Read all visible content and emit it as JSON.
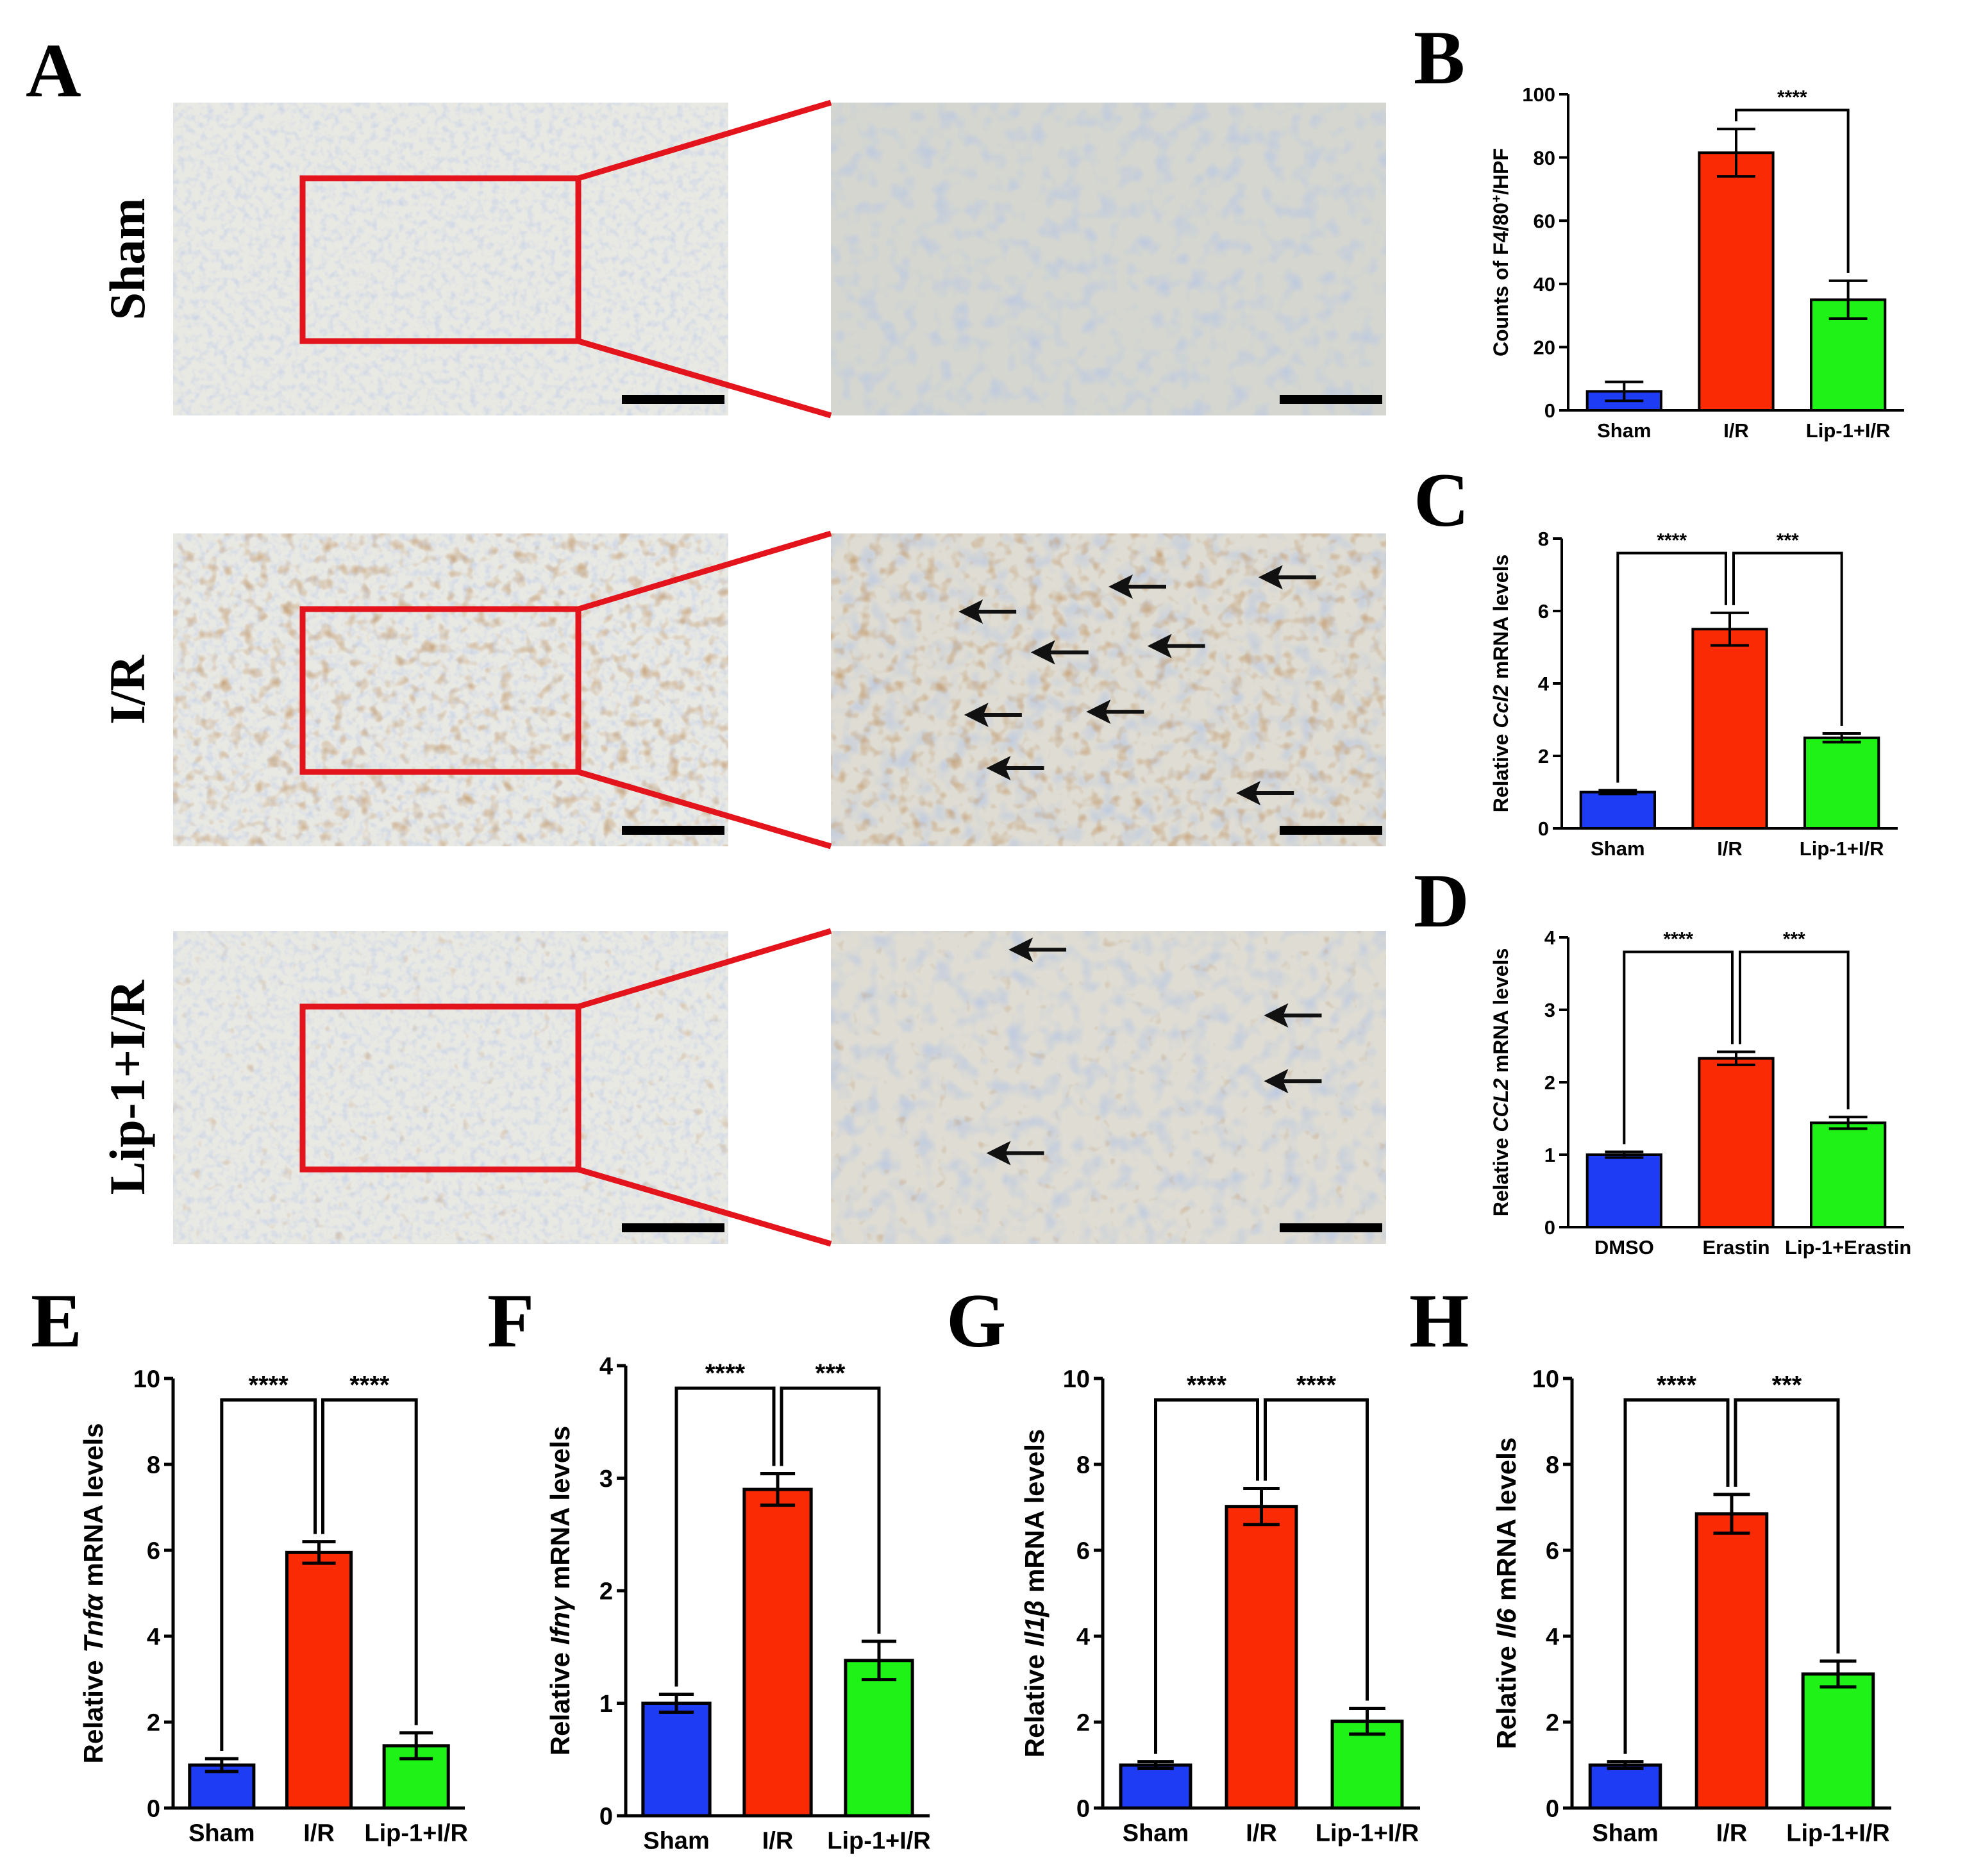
{
  "panel_a": {
    "letter": "A",
    "rows": [
      {
        "label": "Sham",
        "stain": "none",
        "arrows": []
      },
      {
        "label": "I/R",
        "stain": "heavy",
        "arrows": [
          [
            0.23,
            0.25
          ],
          [
            0.36,
            0.38
          ],
          [
            0.5,
            0.17
          ],
          [
            0.57,
            0.36
          ],
          [
            0.24,
            0.58
          ],
          [
            0.46,
            0.57
          ],
          [
            0.28,
            0.75
          ],
          [
            0.73,
            0.83
          ],
          [
            0.77,
            0.14
          ]
        ]
      },
      {
        "label": "Lip-1+I/R",
        "stain": "light",
        "arrows": [
          [
            0.32,
            0.06
          ],
          [
            0.78,
            0.27
          ],
          [
            0.78,
            0.48
          ],
          [
            0.28,
            0.71
          ]
        ]
      }
    ],
    "colors": {
      "box": "#e3141b",
      "arrow": "#111111",
      "tissue": "#e9e9e4",
      "nuclei": "#8c9cc8",
      "stain": "#8b5a2b"
    }
  },
  "chart_data": [
    {
      "panel": "B",
      "type": "bar",
      "categories": [
        "Sham",
        "I/R",
        "Lip-1+I/R"
      ],
      "values": [
        6,
        81.5,
        35
      ],
      "errors": [
        3,
        7.5,
        6
      ],
      "ylabel_parts": [
        {
          "t": "Counts of F4/80"
        },
        {
          "t": "+",
          "sup": true
        },
        {
          "t": "/HPF"
        }
      ],
      "ylim": [
        0,
        100
      ],
      "ticks": [
        0,
        20,
        40,
        60,
        80,
        100
      ],
      "significance": [
        {
          "from": 1,
          "to": 2,
          "label": "****"
        }
      ]
    },
    {
      "panel": "C",
      "type": "bar",
      "categories": [
        "Sham",
        "I/R",
        "Lip-1+I/R"
      ],
      "values": [
        1,
        5.5,
        2.5
      ],
      "errors": [
        0.05,
        0.45,
        0.12
      ],
      "ylabel_parts": [
        {
          "t": "Relative "
        },
        {
          "t": "Ccl2",
          "italic": true
        },
        {
          "t": " mRNA levels"
        }
      ],
      "ylim": [
        0,
        8
      ],
      "ticks": [
        0,
        2,
        4,
        6,
        8
      ],
      "significance": [
        {
          "from": 0,
          "to": 1,
          "label": "****"
        },
        {
          "from": 1,
          "to": 2,
          "label": "***"
        }
      ]
    },
    {
      "panel": "D",
      "type": "bar",
      "categories": [
        "DMSO",
        "Erastin",
        "Lip-1+Erastin"
      ],
      "values": [
        1,
        2.33,
        1.44
      ],
      "errors": [
        0.04,
        0.09,
        0.08
      ],
      "ylabel_parts": [
        {
          "t": "Relative "
        },
        {
          "t": "CCL2",
          "italic": true
        },
        {
          "t": " mRNA levels"
        }
      ],
      "ylim": [
        0,
        4
      ],
      "ticks": [
        0,
        1,
        2,
        3,
        4
      ],
      "significance": [
        {
          "from": 0,
          "to": 1,
          "label": "****"
        },
        {
          "from": 1,
          "to": 2,
          "label": "***"
        }
      ]
    },
    {
      "panel": "E",
      "type": "bar",
      "categories": [
        "Sham",
        "I/R",
        "Lip-1+I/R"
      ],
      "values": [
        1,
        5.95,
        1.45
      ],
      "errors": [
        0.15,
        0.25,
        0.3
      ],
      "ylabel_parts": [
        {
          "t": "Relative "
        },
        {
          "t": "Tnfα",
          "italic": true
        },
        {
          "t": " mRNA levels"
        }
      ],
      "ylim": [
        0,
        10
      ],
      "ticks": [
        0,
        2,
        4,
        6,
        8,
        10
      ],
      "significance": [
        {
          "from": 0,
          "to": 1,
          "label": "****"
        },
        {
          "from": 1,
          "to": 2,
          "label": "****"
        }
      ]
    },
    {
      "panel": "F",
      "type": "bar",
      "categories": [
        "Sham",
        "I/R",
        "Lip-1+I/R"
      ],
      "values": [
        1,
        2.9,
        1.38
      ],
      "errors": [
        0.08,
        0.14,
        0.17
      ],
      "ylabel_parts": [
        {
          "t": "Relative "
        },
        {
          "t": "Ifnγ",
          "italic": true
        },
        {
          "t": " mRNA levels"
        }
      ],
      "ylim": [
        0,
        4
      ],
      "ticks": [
        0,
        1,
        2,
        3,
        4
      ],
      "significance": [
        {
          "from": 0,
          "to": 1,
          "label": "****"
        },
        {
          "from": 1,
          "to": 2,
          "label": "***"
        }
      ]
    },
    {
      "panel": "G",
      "type": "bar",
      "categories": [
        "Sham",
        "I/R",
        "Lip-1+I/R"
      ],
      "values": [
        1,
        7.02,
        2.02
      ],
      "errors": [
        0.08,
        0.42,
        0.3
      ],
      "ylabel_parts": [
        {
          "t": "Relative "
        },
        {
          "t": "Il1β",
          "italic": true
        },
        {
          "t": " mRNA levels"
        }
      ],
      "ylim": [
        0,
        10
      ],
      "ticks": [
        0,
        2,
        4,
        6,
        8,
        10
      ],
      "significance": [
        {
          "from": 0,
          "to": 1,
          "label": "****"
        },
        {
          "from": 1,
          "to": 2,
          "label": "****"
        }
      ]
    },
    {
      "panel": "H",
      "type": "bar",
      "categories": [
        "Sham",
        "I/R",
        "Lip-1+I/R"
      ],
      "values": [
        1,
        6.85,
        3.12
      ],
      "errors": [
        0.08,
        0.45,
        0.3
      ],
      "ylabel_parts": [
        {
          "t": "Relative "
        },
        {
          "t": "Il6",
          "italic": true
        },
        {
          "t": " mRNA levels"
        }
      ],
      "ylim": [
        0,
        10
      ],
      "ticks": [
        0,
        2,
        4,
        6,
        8,
        10
      ],
      "significance": [
        {
          "from": 0,
          "to": 1,
          "label": "****"
        },
        {
          "from": 1,
          "to": 2,
          "label": "***"
        }
      ]
    }
  ],
  "colors": {
    "bars": [
      "#1f3cf5",
      "#fa2a05",
      "#1ef216"
    ],
    "axis": "#000000"
  }
}
